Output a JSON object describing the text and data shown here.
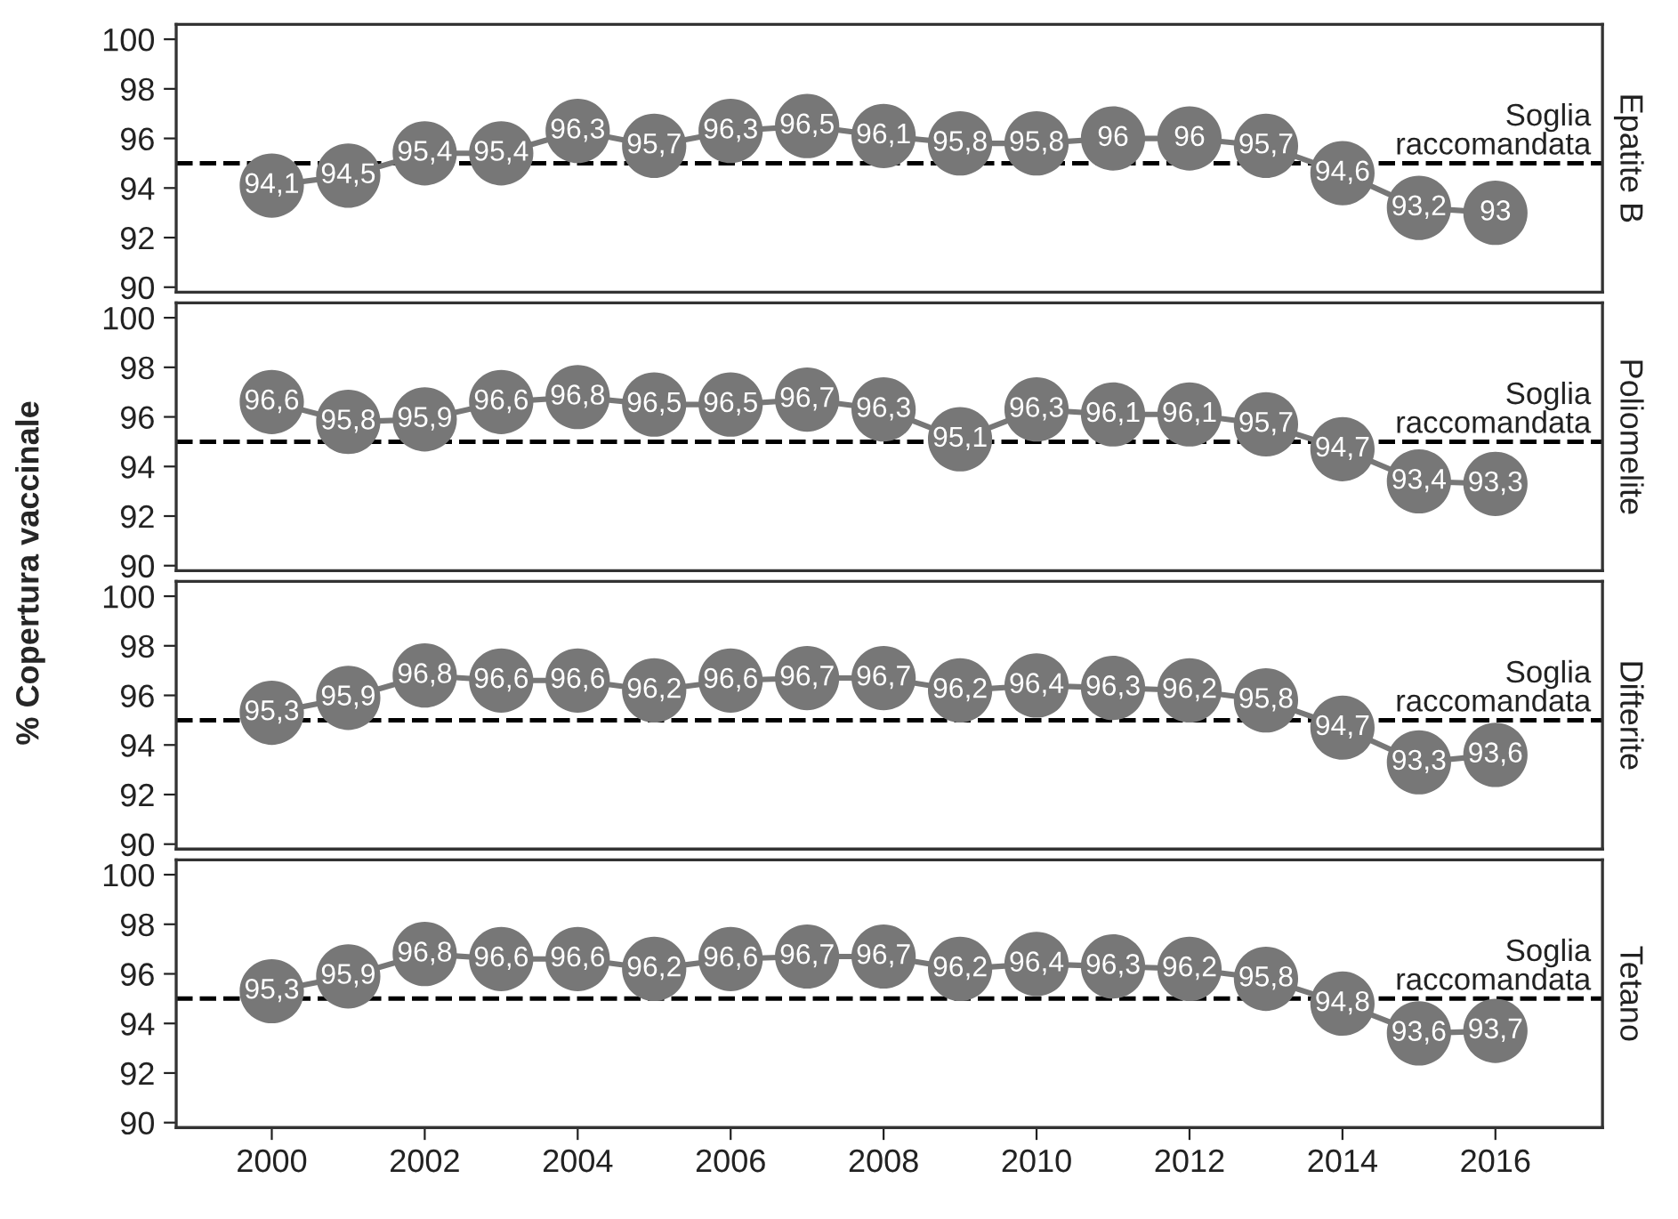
{
  "chart_data": [
    {
      "type": "line",
      "ylabel": "% Copertura vaccinale",
      "y2label": "Epatite B",
      "x": [
        2000,
        2001,
        2002,
        2003,
        2004,
        2005,
        2006,
        2007,
        2008,
        2009,
        2010,
        2011,
        2012,
        2013,
        2014,
        2015,
        2016
      ],
      "series": [
        {
          "color": "#777777",
          "values": [
            94.1,
            94.5,
            95.4,
            95.4,
            96.3,
            95.7,
            96.3,
            96.5,
            96.1,
            95.8,
            95.8,
            96,
            96,
            95.7,
            94.6,
            93.2,
            93
          ],
          "value_labels": [
            "94,1",
            "94,5",
            "95,4",
            "95,4",
            "96,3",
            "95,7",
            "96,3",
            "96,5",
            "96,1",
            "95,8",
            "95,8",
            "96",
            "96",
            "95,7",
            "94,6",
            "93,2",
            "93"
          ]
        }
      ],
      "xlim": [
        1998.75,
        2017.4
      ],
      "xticks": [
        2000,
        2002,
        2004,
        2006,
        2008,
        2010,
        2012,
        2014,
        2016
      ],
      "ylim": [
        89.8,
        100.6
      ],
      "yticks": [
        90,
        92,
        94,
        96,
        98,
        100
      ],
      "tick_labels": "y",
      "marker": "circle",
      "line_style": "solid",
      "ref_lines": [
        {
          "axis": "y",
          "value": 95,
          "label": "Soglia\nraccomandata",
          "color": "#000000",
          "line_style": "dashed"
        }
      ]
    },
    {
      "type": "line",
      "y2label": "Poliomelite",
      "x": [
        2000,
        2001,
        2002,
        2003,
        2004,
        2005,
        2006,
        2007,
        2008,
        2009,
        2010,
        2011,
        2012,
        2013,
        2014,
        2015,
        2016
      ],
      "series": [
        {
          "color": "#777777",
          "values": [
            96.6,
            95.8,
            95.9,
            96.6,
            96.8,
            96.5,
            96.5,
            96.7,
            96.3,
            95.1,
            96.3,
            96.1,
            96.1,
            95.7,
            94.7,
            93.4,
            93.3
          ],
          "value_labels": [
            "96,6",
            "95,8",
            "95,9",
            "96,6",
            "96,8",
            "96,5",
            "96,5",
            "96,7",
            "96,3",
            "95,1",
            "96,3",
            "96,1",
            "96,1",
            "95,7",
            "94,7",
            "93,4",
            "93,3"
          ]
        }
      ],
      "xlim": [
        1998.75,
        2017.4
      ],
      "xticks": [
        2000,
        2002,
        2004,
        2006,
        2008,
        2010,
        2012,
        2014,
        2016
      ],
      "ylim": [
        89.8,
        100.6
      ],
      "yticks": [
        90,
        92,
        94,
        96,
        98,
        100
      ],
      "tick_labels": "y",
      "marker": "circle",
      "line_style": "solid",
      "ref_lines": [
        {
          "axis": "y",
          "value": 95,
          "label": "Soglia\nraccomandata",
          "color": "#000000",
          "line_style": "dashed"
        }
      ]
    },
    {
      "type": "line",
      "y2label": "Difterite",
      "x": [
        2000,
        2001,
        2002,
        2003,
        2004,
        2005,
        2006,
        2007,
        2008,
        2009,
        2010,
        2011,
        2012,
        2013,
        2014,
        2015,
        2016
      ],
      "series": [
        {
          "color": "#777777",
          "values": [
            95.3,
            95.9,
            96.8,
            96.6,
            96.6,
            96.2,
            96.6,
            96.7,
            96.7,
            96.2,
            96.4,
            96.3,
            96.2,
            95.8,
            94.7,
            93.3,
            93.6
          ],
          "value_labels": [
            "95,3",
            "95,9",
            "96,8",
            "96,6",
            "96,6",
            "96,2",
            "96,6",
            "96,7",
            "96,7",
            "96,2",
            "96,4",
            "96,3",
            "96,2",
            "95,8",
            "94,7",
            "93,3",
            "93,6"
          ]
        }
      ],
      "xlim": [
        1998.75,
        2017.4
      ],
      "xticks": [
        2000,
        2002,
        2004,
        2006,
        2008,
        2010,
        2012,
        2014,
        2016
      ],
      "ylim": [
        89.8,
        100.6
      ],
      "yticks": [
        90,
        92,
        94,
        96,
        98,
        100
      ],
      "tick_labels": "y",
      "marker": "circle",
      "line_style": "solid",
      "ref_lines": [
        {
          "axis": "y",
          "value": 95,
          "label": "Soglia\nraccomandata",
          "color": "#000000",
          "line_style": "dashed"
        }
      ]
    },
    {
      "type": "line",
      "y2label": "Tetano",
      "x": [
        2000,
        2001,
        2002,
        2003,
        2004,
        2005,
        2006,
        2007,
        2008,
        2009,
        2010,
        2011,
        2012,
        2013,
        2014,
        2015,
        2016
      ],
      "series": [
        {
          "color": "#777777",
          "values": [
            95.3,
            95.9,
            96.8,
            96.6,
            96.6,
            96.2,
            96.6,
            96.7,
            96.7,
            96.2,
            96.4,
            96.3,
            96.2,
            95.8,
            94.8,
            93.6,
            93.7
          ],
          "value_labels": [
            "95,3",
            "95,9",
            "96,8",
            "96,6",
            "96,6",
            "96,2",
            "96,6",
            "96,7",
            "96,7",
            "96,2",
            "96,4",
            "96,3",
            "96,2",
            "95,8",
            "94,8",
            "93,6",
            "93,7"
          ]
        }
      ],
      "xlim": [
        1998.75,
        2017.4
      ],
      "xticks": [
        2000,
        2002,
        2004,
        2006,
        2008,
        2010,
        2012,
        2014,
        2016
      ],
      "ylim": [
        89.8,
        100.6
      ],
      "yticks": [
        90,
        92,
        94,
        96,
        98,
        100
      ],
      "marker": "circle",
      "line_style": "solid",
      "ref_lines": [
        {
          "axis": "y",
          "value": 95,
          "label": "Soglia\nraccomandata",
          "color": "#000000",
          "line_style": "dashed"
        }
      ]
    }
  ]
}
